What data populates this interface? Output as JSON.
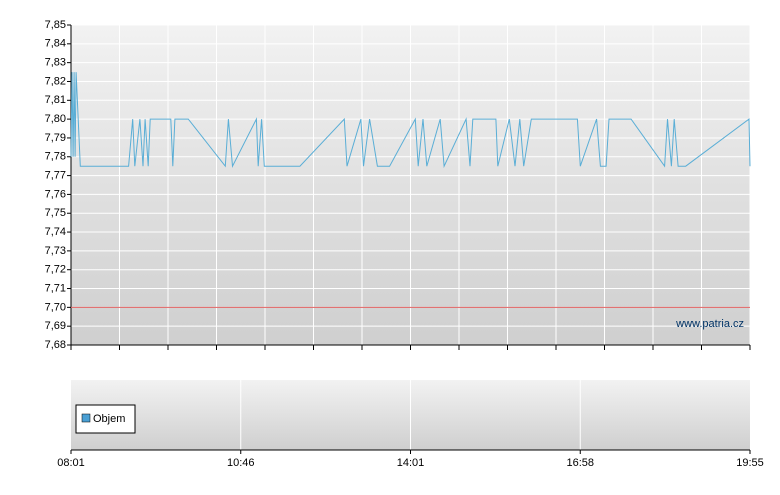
{
  "chart_data": {
    "type": "line",
    "x": [
      "08:01",
      "08:02",
      "08:03",
      "08:04",
      "08:05",
      "08:06",
      "08:10",
      "08:57",
      "09:01",
      "09:03",
      "09:08",
      "09:11",
      "09:13",
      "09:16",
      "09:18",
      "09:38",
      "09:40",
      "09:42",
      "09:55",
      "10:31",
      "10:34",
      "10:38",
      "11:04",
      "11:06",
      "11:10",
      "11:13",
      "11:54",
      "12:45",
      "12:48",
      "13:04",
      "13:07",
      "13:14",
      "13:23",
      "13:37",
      "14:06",
      "14:09",
      "14:14",
      "14:18",
      "14:32",
      "14:36",
      "14:59",
      "15:03",
      "15:06",
      "15:30",
      "15:32",
      "15:44",
      "15:50",
      "15:55",
      "15:59",
      "16:07",
      "16:55",
      "16:58",
      "17:15",
      "17:19",
      "17:25",
      "17:28",
      "17:51",
      "18:26",
      "18:29",
      "18:33",
      "18:36",
      "18:40",
      "18:48",
      "19:54",
      "19:55"
    ],
    "values": [
      7.78,
      7.825,
      7.78,
      7.825,
      7.78,
      7.825,
      7.775,
      7.775,
      7.8,
      7.775,
      7.8,
      7.775,
      7.8,
      7.775,
      7.8,
      7.8,
      7.775,
      7.8,
      7.8,
      7.775,
      7.8,
      7.775,
      7.8,
      7.775,
      7.8,
      7.775,
      7.775,
      7.8,
      7.775,
      7.8,
      7.775,
      7.8,
      7.775,
      7.775,
      7.8,
      7.775,
      7.8,
      7.775,
      7.8,
      7.775,
      7.8,
      7.775,
      7.8,
      7.8,
      7.775,
      7.8,
      7.775,
      7.8,
      7.775,
      7.8,
      7.8,
      7.775,
      7.8,
      7.775,
      7.775,
      7.8,
      7.8,
      7.775,
      7.8,
      7.775,
      7.8,
      7.775,
      7.775,
      7.8,
      7.775
    ],
    "color": "#5aaed6",
    "ylim": [
      7.68,
      7.85
    ],
    "yticks": [
      {
        "value": 7.68,
        "label": "7,68"
      },
      {
        "value": 7.69,
        "label": "7,69"
      },
      {
        "value": 7.7,
        "label": "7,70"
      },
      {
        "value": 7.71,
        "label": "7,71"
      },
      {
        "value": 7.72,
        "label": "7,72"
      },
      {
        "value": 7.73,
        "label": "7,73"
      },
      {
        "value": 7.74,
        "label": "7,74"
      },
      {
        "value": 7.75,
        "label": "7,75"
      },
      {
        "value": 7.76,
        "label": "7,76"
      },
      {
        "value": 7.77,
        "label": "7,77"
      },
      {
        "value": 7.78,
        "label": "7,78"
      },
      {
        "value": 7.79,
        "label": "7,79"
      },
      {
        "value": 7.8,
        "label": "7,80"
      },
      {
        "value": 7.81,
        "label": "7,81"
      },
      {
        "value": 7.82,
        "label": "7,82"
      },
      {
        "value": 7.83,
        "label": "7,83"
      },
      {
        "value": 7.84,
        "label": "7,84"
      },
      {
        "value": 7.85,
        "label": "7,85"
      }
    ],
    "xticks": [
      "08:01",
      "10:46",
      "14:01",
      "16:58",
      "19:55"
    ],
    "reference_line": 7.7,
    "reference_color": "#e06060",
    "watermark": "www.patria.cz",
    "lower_legend": "Objem",
    "lower_legend_color": "#4a9fd4",
    "grid": true
  }
}
